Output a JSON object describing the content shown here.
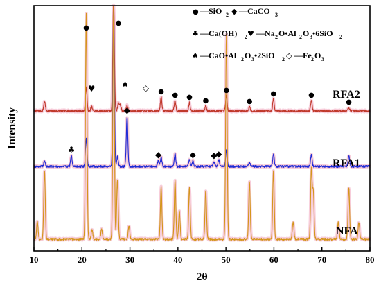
{
  "chart_data": {
    "type": "line",
    "xlabel": "2θ",
    "ylabel": "Intensity",
    "xlim": [
      10,
      80
    ],
    "xticks": [
      10,
      20,
      30,
      40,
      50,
      60,
      70,
      80
    ],
    "grid": false,
    "legend_entries": [
      {
        "marker": "●",
        "label": "SiO2",
        "text": "—SiO"
      },
      {
        "marker": "◆",
        "label": "CaCO3",
        "text": "—CaCO"
      },
      {
        "marker": "♣",
        "label": "Ca(OH)2",
        "text": "—Ca(OH)"
      },
      {
        "marker": "♥",
        "label": "Na2O•Al2O3•6SiO2",
        "text": "—Na2O•Al2O3•6SiO2"
      },
      {
        "marker": "♠",
        "label": "CaO•Al2O3•2SiO2",
        "text": "—CaO•Al2O3•2SiO2"
      },
      {
        "marker": "◇",
        "label": "Fe2O3",
        "text": "—Fe2O3"
      }
    ],
    "series": [
      {
        "name": "RFA2",
        "color": "#c0392b",
        "baseline": 160,
        "peaks": [
          {
            "x": 12.2,
            "h": 14
          },
          {
            "x": 20.9,
            "h": 35
          },
          {
            "x": 22.0,
            "h": 6
          },
          {
            "x": 26.6,
            "h": 165
          },
          {
            "x": 27.6,
            "h": 12
          },
          {
            "x": 28.0,
            "h": 8
          },
          {
            "x": 29.4,
            "h": 8
          },
          {
            "x": 36.5,
            "h": 20
          },
          {
            "x": 39.4,
            "h": 15
          },
          {
            "x": 42.4,
            "h": 12
          },
          {
            "x": 45.8,
            "h": 7
          },
          {
            "x": 50.1,
            "h": 22
          },
          {
            "x": 54.9,
            "h": 6
          },
          {
            "x": 59.9,
            "h": 17
          },
          {
            "x": 67.8,
            "h": 15
          },
          {
            "x": 75.6,
            "h": 5
          }
        ]
      },
      {
        "name": "RFA1",
        "color": "#1f2bd6",
        "baseline": 240,
        "peaks": [
          {
            "x": 12.2,
            "h": 8
          },
          {
            "x": 17.8,
            "h": 15
          },
          {
            "x": 20.9,
            "h": 40
          },
          {
            "x": 26.6,
            "h": 224
          },
          {
            "x": 27.4,
            "h": 14
          },
          {
            "x": 29.4,
            "h": 72
          },
          {
            "x": 35.9,
            "h": 8
          },
          {
            "x": 36.5,
            "h": 13
          },
          {
            "x": 39.4,
            "h": 18
          },
          {
            "x": 42.4,
            "h": 10
          },
          {
            "x": 43.1,
            "h": 8
          },
          {
            "x": 47.5,
            "h": 7
          },
          {
            "x": 48.5,
            "h": 9
          },
          {
            "x": 50.1,
            "h": 24
          },
          {
            "x": 54.9,
            "h": 6
          },
          {
            "x": 59.9,
            "h": 18
          },
          {
            "x": 67.8,
            "h": 17
          },
          {
            "x": 75.6,
            "h": 15
          }
        ]
      },
      {
        "name": "NFA",
        "color": "#d4961c",
        "baseline": 345,
        "peaks": [
          {
            "x": 10.7,
            "h": 25
          },
          {
            "x": 12.2,
            "h": 100
          },
          {
            "x": 20.9,
            "h": 325
          },
          {
            "x": 22.1,
            "h": 14
          },
          {
            "x": 24.1,
            "h": 15
          },
          {
            "x": 26.6,
            "h": 335
          },
          {
            "x": 27.4,
            "h": 85
          },
          {
            "x": 29.8,
            "h": 20
          },
          {
            "x": 36.5,
            "h": 75
          },
          {
            "x": 39.4,
            "h": 85
          },
          {
            "x": 40.3,
            "h": 40
          },
          {
            "x": 42.4,
            "h": 75
          },
          {
            "x": 45.8,
            "h": 70
          },
          {
            "x": 50.1,
            "h": 295
          },
          {
            "x": 54.9,
            "h": 82
          },
          {
            "x": 59.9,
            "h": 98
          },
          {
            "x": 64.0,
            "h": 25
          },
          {
            "x": 67.8,
            "h": 100
          },
          {
            "x": 68.2,
            "h": 70
          },
          {
            "x": 73.4,
            "h": 25
          },
          {
            "x": 75.6,
            "h": 75
          },
          {
            "x": 77.7,
            "h": 25
          }
        ]
      }
    ],
    "annotations": [
      {
        "series": "RFA2",
        "x": 20.9,
        "marker": "●"
      },
      {
        "series": "RFA2",
        "x": 22.0,
        "marker": "♥"
      },
      {
        "series": "RFA2",
        "x": 27.6,
        "marker": "●"
      },
      {
        "series": "RFA2",
        "x": 29.0,
        "marker": "♠"
      },
      {
        "series": "RFA2",
        "x": 33.3,
        "marker": "◇"
      },
      {
        "series": "RFA2",
        "x": 36.5,
        "marker": "●"
      },
      {
        "series": "RFA2",
        "x": 39.4,
        "marker": "●"
      },
      {
        "series": "RFA2",
        "x": 42.4,
        "marker": "●"
      },
      {
        "series": "RFA2",
        "x": 45.8,
        "marker": "●"
      },
      {
        "series": "RFA2",
        "x": 50.1,
        "marker": "●"
      },
      {
        "series": "RFA2",
        "x": 54.9,
        "marker": "●"
      },
      {
        "series": "RFA2",
        "x": 59.9,
        "marker": "●"
      },
      {
        "series": "RFA2",
        "x": 67.8,
        "marker": "●"
      },
      {
        "series": "RFA2",
        "x": 75.6,
        "marker": "●"
      },
      {
        "series": "RFA1",
        "x": 17.8,
        "marker": "♣"
      },
      {
        "series": "RFA1",
        "x": 29.4,
        "marker": "◆"
      },
      {
        "series": "RFA1",
        "x": 35.9,
        "marker": "◆"
      },
      {
        "series": "RFA1",
        "x": 43.1,
        "marker": "◆"
      },
      {
        "series": "RFA1",
        "x": 47.5,
        "marker": "◆"
      },
      {
        "series": "RFA1",
        "x": 48.5,
        "marker": "◆"
      }
    ]
  }
}
